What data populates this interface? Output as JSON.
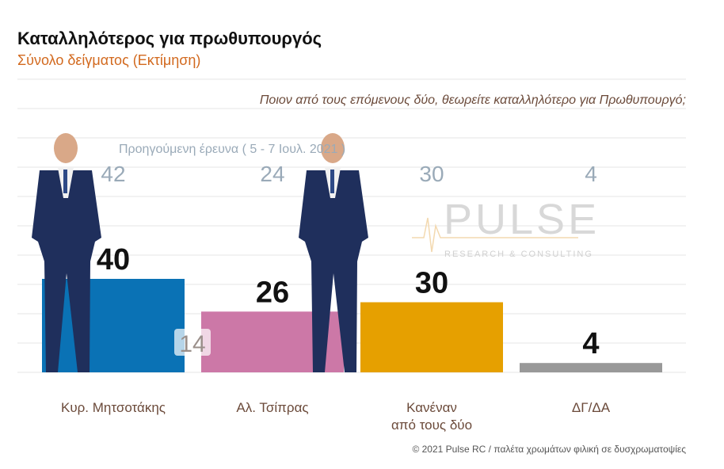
{
  "title": "Καταλληλότερος για πρωθυπουργός",
  "subtitle": "Σύνολο δείγματος   (Εκτίμηση)",
  "question": "Ποιον από τους επόμενους δύο, θεωρείτε καταλληλότερο για Πρωθυπουργό;",
  "previous_label": "Προηγούμενη έρευνα  ( 5 - 7 Ιουλ. 2021 )",
  "footer": "© 2021 Pulse RC  /  παλέτα χρωμάτων φιλική σε δυσχρωματοψίες",
  "watermark": {
    "main": "PULSE",
    "sub": "RESEARCH & CONSULTING"
  },
  "overlay_label": "14",
  "chart_data": {
    "type": "bar",
    "title": "Καταλληλότερος για πρωθυπουργός",
    "categories": [
      [
        "Κυρ. Μητσοτάκης"
      ],
      [
        "Αλ. Τσίπρας"
      ],
      [
        "Κανέναν",
        "από τους δύο"
      ],
      [
        "ΔΓ/ΔΑ"
      ]
    ],
    "values": [
      40,
      26,
      30,
      4
    ],
    "previous_values": [
      42,
      24,
      30,
      4
    ],
    "colors": [
      "#0a72b5",
      "#cc78a7",
      "#e6a000",
      "#999999"
    ],
    "ylim": [
      0,
      50
    ],
    "grid": true
  }
}
